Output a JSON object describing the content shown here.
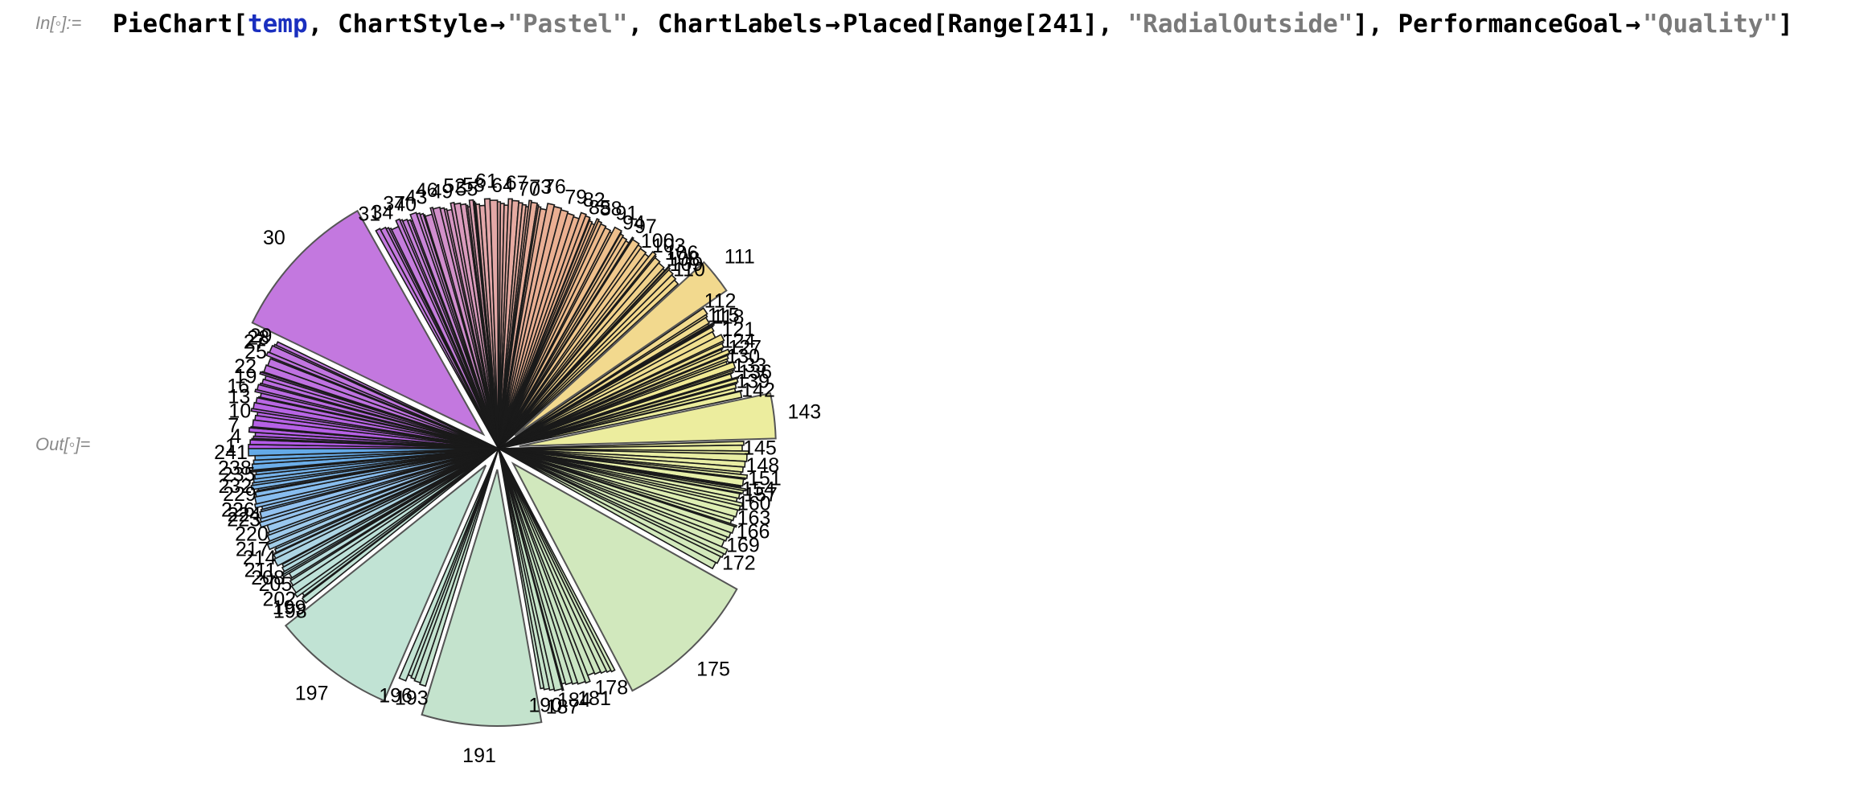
{
  "notebook": {
    "input_label": "In[◦]:=",
    "output_label": "Out[◦]=",
    "code": {
      "function": "PieChart",
      "open_bracket": "[",
      "argument": "temp",
      "comma1": ", ",
      "opt1_name": "ChartStyle",
      "arrow": "→",
      "opt1_value": "\"Pastel\"",
      "comma2": ", ",
      "opt2_name": "ChartLabels",
      "opt2_func": "Placed[Range[241], ",
      "opt2_value": "\"RadialOutside\"",
      "opt2_close": "]",
      "comma3": ", ",
      "opt3_name": "PerformanceGoal",
      "opt3_value": "\"Quality\"",
      "close_bracket": "]"
    }
  },
  "chart_data": {
    "type": "pie",
    "style": "Pastel",
    "label_placement": "RadialOutside",
    "slice_count": 241,
    "big_slices": [
      {
        "label": "30",
        "value": 11.6
      },
      {
        "label": "143",
        "value": 3.4
      },
      {
        "label": "175",
        "value": 11.0
      },
      {
        "label": "191",
        "value": 9.0
      },
      {
        "label": "197",
        "value": 9.3
      },
      {
        "label": "111",
        "value": 2.7
      }
    ],
    "visible_labels": [
      "30",
      "29",
      "28",
      "27",
      "111",
      "118",
      "143",
      "148",
      "166",
      "175",
      "191",
      "197",
      "198",
      "199",
      "223",
      "224",
      "241",
      "108",
      "109",
      "110",
      "190",
      "187"
    ]
  }
}
